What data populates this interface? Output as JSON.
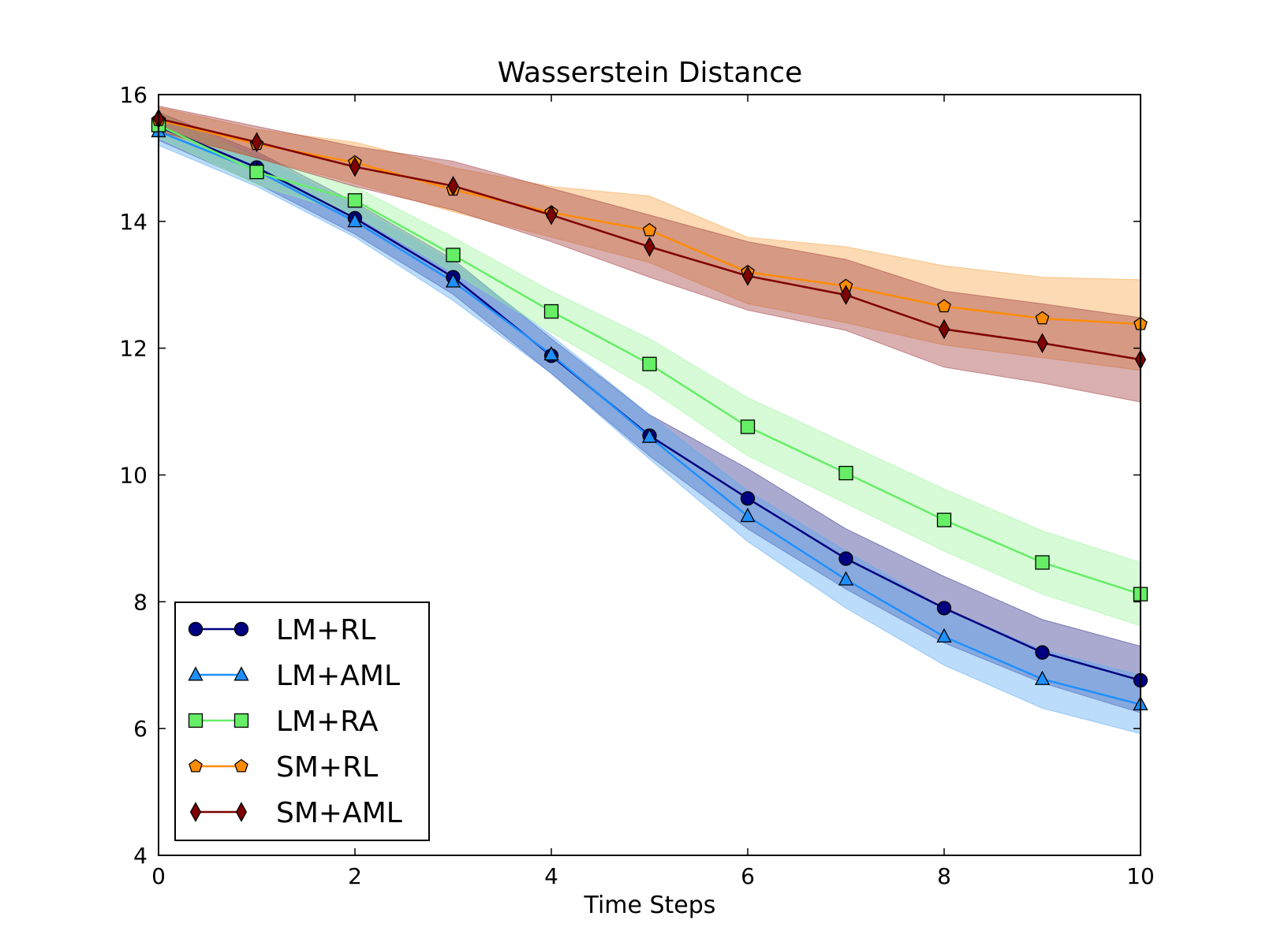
{
  "chart_data": {
    "type": "line",
    "title": "Wasserstein Distance",
    "xlabel": "Time Steps",
    "ylabel": "",
    "xlim": [
      0,
      10
    ],
    "ylim": [
      4,
      16
    ],
    "xticks": [
      "0",
      "2",
      "4",
      "6",
      "8",
      "10"
    ],
    "yticks": [
      "4",
      "6",
      "8",
      "10",
      "12",
      "14",
      "16"
    ],
    "legend_position": "lower-left",
    "x": [
      0,
      1,
      2,
      3,
      4,
      5,
      6,
      7,
      8,
      9,
      10
    ],
    "series": [
      {
        "name": "LM+RL",
        "color": "#000080",
        "band_color": "#2a2a8a",
        "marker": "circle",
        "values": [
          15.5,
          14.85,
          14.05,
          13.12,
          11.88,
          10.62,
          9.63,
          8.68,
          7.9,
          7.2,
          6.76
        ],
        "lower": [
          15.28,
          14.6,
          13.8,
          12.85,
          11.6,
          10.3,
          9.15,
          8.2,
          7.35,
          6.72,
          6.25
        ],
        "upper": [
          15.72,
          15.1,
          14.3,
          13.4,
          12.15,
          10.95,
          10.1,
          9.15,
          8.4,
          7.72,
          7.3
        ]
      },
      {
        "name": "LM+AML",
        "color": "#1e90ff",
        "band_color": "#55a8f2",
        "marker": "triangle",
        "values": [
          15.42,
          14.8,
          14.0,
          13.05,
          11.9,
          10.6,
          9.35,
          8.35,
          7.45,
          6.78,
          6.38
        ],
        "lower": [
          15.2,
          14.55,
          13.75,
          12.75,
          11.6,
          10.25,
          8.95,
          7.9,
          7.0,
          6.32,
          5.92
        ],
        "upper": [
          15.64,
          15.05,
          14.25,
          13.35,
          12.2,
          10.95,
          9.75,
          8.8,
          7.9,
          7.24,
          6.84
        ]
      },
      {
        "name": "LM+RA",
        "color": "#66ee66",
        "band_color": "#99f599",
        "marker": "square",
        "values": [
          15.52,
          14.78,
          14.33,
          13.47,
          12.58,
          11.75,
          10.76,
          10.03,
          9.29,
          8.62,
          8.12
        ],
        "lower": [
          15.32,
          14.58,
          14.1,
          13.2,
          12.25,
          11.35,
          10.3,
          9.55,
          8.8,
          8.12,
          7.62
        ],
        "upper": [
          15.72,
          15.0,
          14.55,
          13.75,
          12.9,
          12.15,
          11.22,
          10.5,
          9.78,
          9.12,
          8.62
        ]
      },
      {
        "name": "SM+RL",
        "color": "#ff8c00",
        "band_color": "#f6a243",
        "marker": "pentagon",
        "values": [
          15.6,
          15.22,
          14.93,
          14.5,
          14.14,
          13.86,
          13.2,
          12.98,
          12.66,
          12.47,
          12.38
        ],
        "lower": [
          15.4,
          15.0,
          14.6,
          14.15,
          13.75,
          13.35,
          12.7,
          12.4,
          12.05,
          11.85,
          11.65
        ],
        "upper": [
          15.8,
          15.45,
          15.25,
          14.85,
          14.55,
          14.4,
          13.75,
          13.6,
          13.3,
          13.12,
          13.08
        ]
      },
      {
        "name": "SM+AML",
        "color": "#7f0000",
        "band_color": "#a0383a",
        "marker": "diamond",
        "values": [
          15.62,
          15.25,
          14.86,
          14.56,
          14.1,
          13.6,
          13.14,
          12.84,
          12.3,
          12.08,
          11.82
        ],
        "lower": [
          15.42,
          15.0,
          14.55,
          14.18,
          13.68,
          13.12,
          12.6,
          12.28,
          11.7,
          11.45,
          11.15
        ],
        "upper": [
          15.82,
          15.5,
          15.18,
          14.95,
          14.52,
          14.1,
          13.68,
          13.4,
          12.9,
          12.7,
          12.48
        ]
      }
    ]
  }
}
